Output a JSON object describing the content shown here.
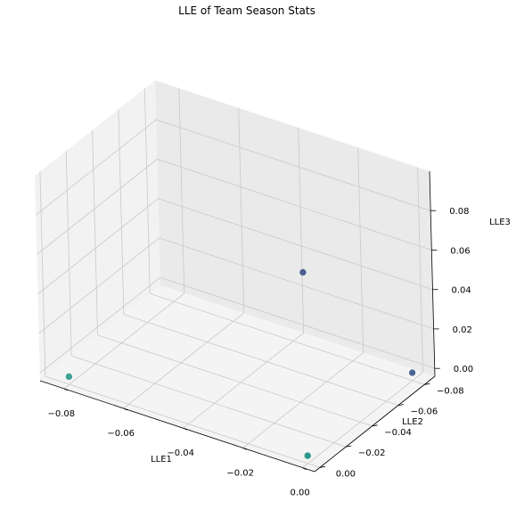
{
  "chart_data": {
    "type": "scatter",
    "title": "LLE of Team Season Stats",
    "xlabel": "LLE1",
    "ylabel": "LLE2",
    "zlabel": "LLE3",
    "xlim": [
      -0.088,
      0.004
    ],
    "ylim": [
      -0.088,
      0.004
    ],
    "zlim": [
      -0.004,
      0.1
    ],
    "xticks": [
      -0.08,
      -0.06,
      -0.04,
      -0.02,
      0.0
    ],
    "xtick_labels": [
      "−0.08",
      "−0.06",
      "−0.04",
      "−0.02",
      "0.00"
    ],
    "yticks": [
      -0.08,
      -0.06,
      -0.04,
      -0.02,
      0.0
    ],
    "ytick_labels": [
      "−0.08",
      "−0.06",
      "−0.04",
      "−0.02",
      "0.00"
    ],
    "zticks": [
      0.0,
      0.02,
      0.04,
      0.06,
      0.08
    ],
    "ztick_labels": [
      "0.00",
      "0.02",
      "0.04",
      "0.06",
      "0.08"
    ],
    "grid": true,
    "points": [
      {
        "x": -0.08,
        "y": 0.0,
        "z": 0.0,
        "color": "#2a9b8a"
      },
      {
        "x": 0.0,
        "y": -0.08,
        "z": 0.0,
        "color": "#39568c"
      },
      {
        "x": 0.0,
        "y": 0.0,
        "z": 0.0,
        "color": "#25848e"
      },
      {
        "x": 0.0,
        "y": 0.0,
        "z": 0.0,
        "color": "#2a9b8a"
      },
      {
        "x": 0.0,
        "y": 0.0,
        "z": 0.093,
        "color": "#3b528b"
      }
    ],
    "colors": {
      "pane_back": "#eaeaea",
      "pane_side": "#f2f2f2",
      "pane_floor": "#f4f4f4",
      "grid": "#c9c9c9",
      "axis_line": "#000000"
    }
  }
}
